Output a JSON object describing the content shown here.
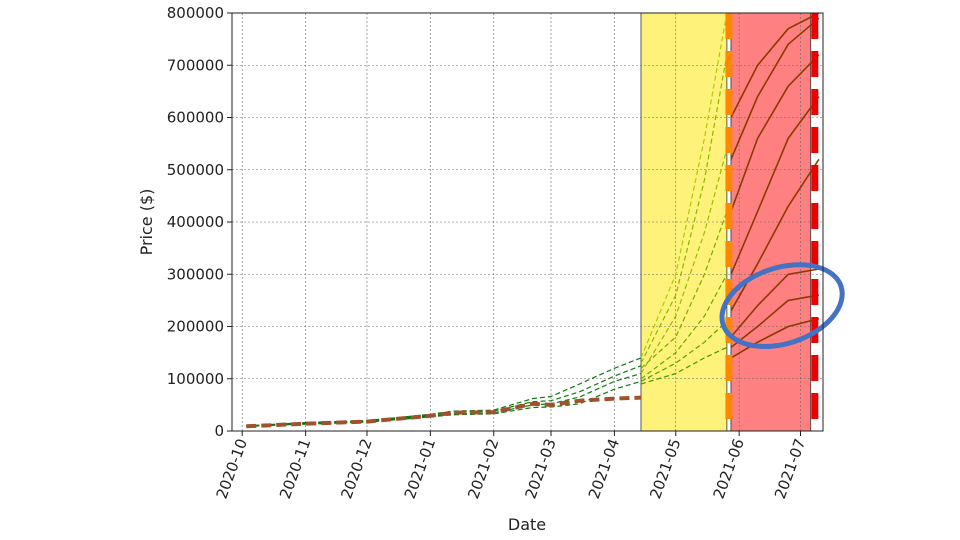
{
  "chart_data": {
    "type": "line",
    "xlabel": "Date",
    "ylabel": "Price ($)",
    "ylim": [
      0,
      800000
    ],
    "xlim": [
      "2020-09-26",
      "2021-07-12"
    ],
    "y_ticks": [
      0,
      100000,
      200000,
      300000,
      400000,
      500000,
      600000,
      700000,
      800000
    ],
    "x_ticks": [
      {
        "date": "2020-10-01",
        "label": "2020-10"
      },
      {
        "date": "2020-11-01",
        "label": "2020-11"
      },
      {
        "date": "2020-12-01",
        "label": "2020-12"
      },
      {
        "date": "2021-01-01",
        "label": "2021-01"
      },
      {
        "date": "2021-02-01",
        "label": "2021-02"
      },
      {
        "date": "2021-03-01",
        "label": "2021-03"
      },
      {
        "date": "2021-04-01",
        "label": "2021-04"
      },
      {
        "date": "2021-05-01",
        "label": "2021-05"
      },
      {
        "date": "2021-06-01",
        "label": "2021-06"
      },
      {
        "date": "2021-07-01",
        "label": "2021-07"
      }
    ],
    "grid": true,
    "regions": [
      {
        "start": "2021-04-14",
        "end": "2021-05-26",
        "color": "#fff27a"
      },
      {
        "start": "2021-05-28",
        "end": "2021-07-06",
        "color": "#ff8080"
      }
    ],
    "vertical_lines": [
      {
        "date": "2021-05-27",
        "color": "#ff8800",
        "style": "dashed"
      },
      {
        "date": "2021-07-08",
        "color": "#ee0000",
        "style": "dashed"
      }
    ],
    "series": [
      {
        "style": "actual",
        "color": "#a0522d",
        "points": [
          [
            "2020-10-03",
            9000
          ],
          [
            "2020-11-01",
            14000
          ],
          [
            "2020-12-01",
            18000
          ],
          [
            "2021-01-01",
            29000
          ],
          [
            "2021-01-12",
            35000
          ],
          [
            "2021-02-01",
            36000
          ],
          [
            "2021-02-20",
            52000
          ],
          [
            "2021-03-01",
            50000
          ],
          [
            "2021-03-15",
            58000
          ],
          [
            "2021-04-01",
            62000
          ],
          [
            "2021-04-14",
            64000
          ]
        ]
      },
      {
        "style": "simulated",
        "color": "#117711",
        "points": [
          [
            "2020-10-03",
            9500
          ],
          [
            "2020-11-01",
            13000
          ],
          [
            "2020-12-01",
            17000
          ],
          [
            "2021-01-01",
            27000
          ],
          [
            "2021-01-12",
            31000
          ],
          [
            "2021-02-01",
            33000
          ],
          [
            "2021-02-20",
            45000
          ],
          [
            "2021-03-01",
            46000
          ],
          [
            "2021-03-15",
            52000
          ],
          [
            "2021-04-01",
            80000
          ],
          [
            "2021-04-14",
            95000
          ]
        ]
      },
      {
        "style": "simulated",
        "color": "#117711",
        "points": [
          [
            "2020-10-03",
            10000
          ],
          [
            "2020-11-01",
            16000
          ],
          [
            "2020-12-01",
            20000
          ],
          [
            "2021-01-01",
            32000
          ],
          [
            "2021-01-12",
            38000
          ],
          [
            "2021-02-01",
            40000
          ],
          [
            "2021-02-20",
            62000
          ],
          [
            "2021-03-01",
            66000
          ],
          [
            "2021-03-15",
            90000
          ],
          [
            "2021-04-01",
            120000
          ],
          [
            "2021-04-14",
            140000
          ]
        ]
      },
      {
        "style": "simulated",
        "color": "#117711",
        "points": [
          [
            "2020-10-03",
            9000
          ],
          [
            "2020-11-01",
            15000
          ],
          [
            "2020-12-01",
            19000
          ],
          [
            "2021-01-01",
            30000
          ],
          [
            "2021-01-12",
            36000
          ],
          [
            "2021-02-01",
            38000
          ],
          [
            "2021-02-20",
            56000
          ],
          [
            "2021-03-01",
            58000
          ],
          [
            "2021-03-15",
            75000
          ],
          [
            "2021-04-01",
            105000
          ],
          [
            "2021-04-14",
            125000
          ]
        ]
      },
      {
        "style": "simulated",
        "color": "#117711",
        "points": [
          [
            "2020-10-03",
            8500
          ],
          [
            "2020-11-01",
            14500
          ],
          [
            "2020-12-01",
            18500
          ],
          [
            "2021-01-01",
            28000
          ],
          [
            "2021-01-12",
            33000
          ],
          [
            "2021-02-01",
            35000
          ],
          [
            "2021-02-20",
            50000
          ],
          [
            "2021-03-01",
            52000
          ],
          [
            "2021-03-15",
            65000
          ],
          [
            "2021-04-01",
            95000
          ],
          [
            "2021-04-14",
            110000
          ]
        ]
      },
      {
        "style": "forecast",
        "color": "#99bb00",
        "points": [
          [
            "2021-04-14",
            110000
          ],
          [
            "2021-05-01",
            220000
          ],
          [
            "2021-05-15",
            380000
          ],
          [
            "2021-05-26",
            540000
          ]
        ]
      },
      {
        "style": "forecast",
        "color": "#77aa00",
        "points": [
          [
            "2021-04-14",
            120000
          ],
          [
            "2021-05-01",
            180000
          ],
          [
            "2021-05-15",
            300000
          ],
          [
            "2021-05-26",
            420000
          ]
        ]
      },
      {
        "style": "forecast",
        "color": "#66a800",
        "points": [
          [
            "2021-04-14",
            100000
          ],
          [
            "2021-05-01",
            150000
          ],
          [
            "2021-05-15",
            220000
          ],
          [
            "2021-05-26",
            300000
          ]
        ]
      },
      {
        "style": "forecast",
        "color": "#88b800",
        "points": [
          [
            "2021-04-14",
            130000
          ],
          [
            "2021-05-01",
            260000
          ],
          [
            "2021-05-15",
            480000
          ],
          [
            "2021-05-26",
            720000
          ]
        ]
      },
      {
        "style": "forecast",
        "color": "#55a000",
        "points": [
          [
            "2021-04-14",
            95000
          ],
          [
            "2021-05-01",
            130000
          ],
          [
            "2021-05-15",
            170000
          ],
          [
            "2021-05-26",
            210000
          ]
        ]
      },
      {
        "style": "forecast",
        "color": "#aacc00",
        "points": [
          [
            "2021-04-14",
            140000
          ],
          [
            "2021-05-01",
            300000
          ],
          [
            "2021-05-15",
            560000
          ],
          [
            "2021-05-26",
            800000
          ]
        ]
      },
      {
        "style": "forecast",
        "color": "#449900",
        "points": [
          [
            "2021-04-14",
            90000
          ],
          [
            "2021-05-01",
            110000
          ],
          [
            "2021-05-15",
            140000
          ],
          [
            "2021-05-26",
            160000
          ]
        ]
      },
      {
        "style": "projection",
        "color": "#8b3a00",
        "points": [
          [
            "2021-05-28",
            300000
          ],
          [
            "2021-06-10",
            420000
          ],
          [
            "2021-06-25",
            560000
          ],
          [
            "2021-07-10",
            640000
          ]
        ]
      },
      {
        "style": "projection",
        "color": "#8b3a00",
        "points": [
          [
            "2021-05-28",
            420000
          ],
          [
            "2021-06-10",
            560000
          ],
          [
            "2021-06-25",
            660000
          ],
          [
            "2021-07-10",
            720000
          ]
        ]
      },
      {
        "style": "projection",
        "color": "#8b3a00",
        "points": [
          [
            "2021-05-28",
            520000
          ],
          [
            "2021-06-10",
            640000
          ],
          [
            "2021-06-25",
            740000
          ],
          [
            "2021-07-10",
            790000
          ]
        ]
      },
      {
        "style": "projection",
        "color": "#8b3a00",
        "points": [
          [
            "2021-05-28",
            230000
          ],
          [
            "2021-06-10",
            320000
          ],
          [
            "2021-06-25",
            430000
          ],
          [
            "2021-07-10",
            520000
          ]
        ]
      },
      {
        "style": "projection",
        "color": "#8b3a00",
        "points": [
          [
            "2021-05-28",
            180000
          ],
          [
            "2021-06-10",
            240000
          ],
          [
            "2021-06-25",
            300000
          ],
          [
            "2021-07-10",
            310000
          ]
        ]
      },
      {
        "style": "projection",
        "color": "#8b3a00",
        "points": [
          [
            "2021-05-28",
            160000
          ],
          [
            "2021-06-10",
            200000
          ],
          [
            "2021-06-25",
            250000
          ],
          [
            "2021-07-10",
            260000
          ]
        ]
      },
      {
        "style": "projection",
        "color": "#8b3a00",
        "points": [
          [
            "2021-05-28",
            140000
          ],
          [
            "2021-06-10",
            170000
          ],
          [
            "2021-06-25",
            200000
          ],
          [
            "2021-07-10",
            215000
          ]
        ]
      },
      {
        "style": "projection",
        "color": "#8b3a00",
        "points": [
          [
            "2021-05-28",
            600000
          ],
          [
            "2021-06-10",
            700000
          ],
          [
            "2021-06-25",
            770000
          ],
          [
            "2021-07-10",
            800000
          ]
        ]
      }
    ],
    "annotation": {
      "type": "ellipse",
      "color": "#4472c4",
      "center": [
        "2021-06-22",
        240000
      ]
    }
  }
}
